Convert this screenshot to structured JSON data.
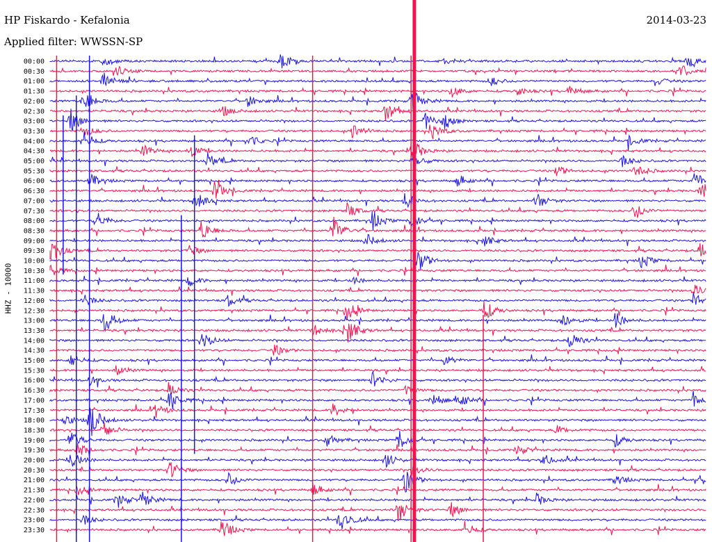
{
  "header": {
    "station": "HP Fiskardo - Kefalonia",
    "filter": "Applied filter: WWSSN-SP",
    "date": "2014-03-23",
    "channel": "HHZ - 10000"
  },
  "colors": {
    "odd_trace": "#1a12e6",
    "even_trace": "#f0134e",
    "background": "#ffffff"
  },
  "chart_data": {
    "type": "line",
    "subtype": "helicorder",
    "title": "",
    "xlabel": "",
    "ylabel": "HHZ - 10000",
    "grid": false,
    "legend": "none",
    "row_labels": [
      "00:00",
      "00:30",
      "01:00",
      "01:30",
      "02:00",
      "02:30",
      "03:00",
      "03:30",
      "04:00",
      "04:30",
      "05:00",
      "05:30",
      "06:00",
      "06:30",
      "07:00",
      "07:30",
      "08:00",
      "08:30",
      "09:00",
      "09:30",
      "10:00",
      "10:30",
      "11:00",
      "11:30",
      "12:00",
      "12:30",
      "13:00",
      "13:30",
      "14:00",
      "14:30",
      "15:00",
      "15:30",
      "16:00",
      "16:30",
      "17:00",
      "17:30",
      "18:00",
      "18:30",
      "19:00",
      "19:30",
      "20:00",
      "20:30",
      "21:00",
      "21:30",
      "22:00",
      "22:30",
      "23:00",
      "23:30"
    ],
    "row_minutes": 30,
    "events": [
      {
        "row": 0,
        "t": 0.35,
        "a": 14
      },
      {
        "row": 0,
        "t": 0.08,
        "a": 8
      },
      {
        "row": 0,
        "t": 0.6,
        "a": 6
      },
      {
        "row": 0,
        "t": 0.97,
        "a": 10
      },
      {
        "row": 1,
        "t": 0.1,
        "a": 8
      },
      {
        "row": 1,
        "t": 0.96,
        "a": 12
      },
      {
        "row": 2,
        "t": 0.08,
        "a": 14
      },
      {
        "row": 2,
        "t": 0.67,
        "a": 8
      },
      {
        "row": 2,
        "t": 0.92,
        "a": 8
      },
      {
        "row": 3,
        "t": 0.61,
        "a": 10
      },
      {
        "row": 3,
        "t": 0.71,
        "a": 8
      },
      {
        "row": 3,
        "t": 0.79,
        "a": 10
      },
      {
        "row": 4,
        "t": 0.05,
        "a": 20
      },
      {
        "row": 4,
        "t": 0.3,
        "a": 10
      },
      {
        "row": 4,
        "t": 0.55,
        "a": 20
      },
      {
        "row": 5,
        "t": 0.51,
        "a": 18
      },
      {
        "row": 5,
        "t": 0.26,
        "a": 10
      },
      {
        "row": 6,
        "t": 0.03,
        "a": 20
      },
      {
        "row": 6,
        "t": 0.57,
        "a": 14
      },
      {
        "row": 6,
        "t": 0.6,
        "a": 12
      },
      {
        "row": 7,
        "t": 0.05,
        "a": 10
      },
      {
        "row": 7,
        "t": 0.46,
        "a": 14
      },
      {
        "row": 7,
        "t": 0.58,
        "a": 14
      },
      {
        "row": 8,
        "t": 0.05,
        "a": 16
      },
      {
        "row": 8,
        "t": 0.3,
        "a": 12
      },
      {
        "row": 8,
        "t": 0.88,
        "a": 10
      },
      {
        "row": 9,
        "t": 0.55,
        "a": 20
      },
      {
        "row": 9,
        "t": 0.21,
        "a": 14
      },
      {
        "row": 9,
        "t": 0.14,
        "a": 10
      },
      {
        "row": 10,
        "t": 0.55,
        "a": 16
      },
      {
        "row": 10,
        "t": 0.24,
        "a": 12
      },
      {
        "row": 10,
        "t": 0.87,
        "a": 10
      },
      {
        "row": 11,
        "t": 0.89,
        "a": 14
      },
      {
        "row": 11,
        "t": 0.77,
        "a": 10
      },
      {
        "row": 12,
        "t": 0.06,
        "a": 12
      },
      {
        "row": 12,
        "t": 0.98,
        "a": 12
      },
      {
        "row": 12,
        "t": 0.62,
        "a": 10
      },
      {
        "row": 13,
        "t": 0.25,
        "a": 18
      },
      {
        "row": 13,
        "t": 0.99,
        "a": 18
      },
      {
        "row": 14,
        "t": 0.22,
        "a": 16
      },
      {
        "row": 14,
        "t": 0.54,
        "a": 12
      },
      {
        "row": 14,
        "t": 0.74,
        "a": 14
      },
      {
        "row": 15,
        "t": 0.45,
        "a": 14
      },
      {
        "row": 15,
        "t": 0.89,
        "a": 14
      },
      {
        "row": 16,
        "t": 0.07,
        "a": 14
      },
      {
        "row": 16,
        "t": 0.49,
        "a": 16
      },
      {
        "row": 16,
        "t": 0.55,
        "a": 12
      },
      {
        "row": 17,
        "t": 0.23,
        "a": 16
      },
      {
        "row": 17,
        "t": 0.43,
        "a": 24
      },
      {
        "row": 18,
        "t": 0.48,
        "a": 12
      },
      {
        "row": 18,
        "t": 0.66,
        "a": 10
      },
      {
        "row": 19,
        "t": 0.0,
        "a": 20
      },
      {
        "row": 19,
        "t": 0.21,
        "a": 10
      },
      {
        "row": 19,
        "t": 0.99,
        "a": 14
      },
      {
        "row": 20,
        "t": 0.56,
        "a": 20
      },
      {
        "row": 20,
        "t": 0.9,
        "a": 12
      },
      {
        "row": 21,
        "t": 0.0,
        "a": 10
      },
      {
        "row": 22,
        "t": 0.21,
        "a": 10
      },
      {
        "row": 22,
        "t": 0.46,
        "a": 6
      },
      {
        "row": 23,
        "t": 0.98,
        "a": 10
      },
      {
        "row": 24,
        "t": 0.05,
        "a": 10
      },
      {
        "row": 24,
        "t": 0.27,
        "a": 10
      },
      {
        "row": 24,
        "t": 0.98,
        "a": 14
      },
      {
        "row": 25,
        "t": 0.45,
        "a": 16
      },
      {
        "row": 25,
        "t": 0.66,
        "a": 18
      },
      {
        "row": 26,
        "t": 0.08,
        "a": 22
      },
      {
        "row": 26,
        "t": 0.78,
        "a": 12
      },
      {
        "row": 26,
        "t": 0.86,
        "a": 14
      },
      {
        "row": 27,
        "t": 0.45,
        "a": 26
      },
      {
        "row": 27,
        "t": 0.4,
        "a": 10
      },
      {
        "row": 28,
        "t": 0.23,
        "a": 16
      },
      {
        "row": 28,
        "t": 0.79,
        "a": 16
      },
      {
        "row": 29,
        "t": 0.34,
        "a": 10
      },
      {
        "row": 30,
        "t": 0.03,
        "a": 12
      },
      {
        "row": 30,
        "t": 0.6,
        "a": 8
      },
      {
        "row": 31,
        "t": 0.1,
        "a": 8
      },
      {
        "row": 32,
        "t": 0.49,
        "a": 14
      },
      {
        "row": 32,
        "t": 0.06,
        "a": 8
      },
      {
        "row": 33,
        "t": 0.18,
        "a": 12
      },
      {
        "row": 33,
        "t": 0.54,
        "a": 8
      },
      {
        "row": 34,
        "t": 0.18,
        "a": 18
      },
      {
        "row": 34,
        "t": 0.58,
        "a": 14
      },
      {
        "row": 34,
        "t": 0.62,
        "a": 14
      },
      {
        "row": 34,
        "t": 0.98,
        "a": 12
      },
      {
        "row": 35,
        "t": 0.16,
        "a": 10
      },
      {
        "row": 35,
        "t": 0.43,
        "a": 12
      },
      {
        "row": 36,
        "t": 0.06,
        "a": 30
      },
      {
        "row": 36,
        "t": 0.02,
        "a": 10
      },
      {
        "row": 37,
        "t": 0.08,
        "a": 14
      },
      {
        "row": 37,
        "t": 0.77,
        "a": 8
      },
      {
        "row": 38,
        "t": 0.03,
        "a": 18
      },
      {
        "row": 38,
        "t": 0.42,
        "a": 12
      },
      {
        "row": 38,
        "t": 0.53,
        "a": 16
      },
      {
        "row": 38,
        "t": 0.86,
        "a": 10
      },
      {
        "row": 39,
        "t": 0.04,
        "a": 12
      },
      {
        "row": 39,
        "t": 0.71,
        "a": 8
      },
      {
        "row": 40,
        "t": 0.03,
        "a": 16
      },
      {
        "row": 40,
        "t": 0.51,
        "a": 12
      },
      {
        "row": 40,
        "t": 0.75,
        "a": 10
      },
      {
        "row": 41,
        "t": 0.18,
        "a": 16
      },
      {
        "row": 41,
        "t": 0.55,
        "a": 10
      },
      {
        "row": 42,
        "t": 0.27,
        "a": 12
      },
      {
        "row": 42,
        "t": 0.54,
        "a": 20
      },
      {
        "row": 42,
        "t": 0.99,
        "a": 8
      },
      {
        "row": 42,
        "t": 0.86,
        "a": 10
      },
      {
        "row": 43,
        "t": 0.04,
        "a": 8
      },
      {
        "row": 43,
        "t": 0.4,
        "a": 10
      },
      {
        "row": 44,
        "t": 0.1,
        "a": 14
      },
      {
        "row": 44,
        "t": 0.14,
        "a": 14
      },
      {
        "row": 44,
        "t": 0.74,
        "a": 10
      },
      {
        "row": 45,
        "t": 0.53,
        "a": 20
      },
      {
        "row": 45,
        "t": 0.61,
        "a": 12
      },
      {
        "row": 46,
        "t": 0.44,
        "a": 24
      },
      {
        "row": 46,
        "t": 0.05,
        "a": 8
      },
      {
        "row": 47,
        "t": 0.26,
        "a": 20
      },
      {
        "row": 47,
        "t": 0.63,
        "a": 14
      }
    ],
    "long_spikes": [
      {
        "t": 0.02,
        "from_row": 6,
        "to_row": 20,
        "color": "blue"
      },
      {
        "t": 0.04,
        "from_row": 4,
        "to_row": 47,
        "color": "blue"
      },
      {
        "t": 0.06,
        "from_row": 0,
        "to_row": 47,
        "color": "blue"
      },
      {
        "t": 0.2,
        "from_row": 16,
        "to_row": 47,
        "color": "blue"
      },
      {
        "t": 0.22,
        "from_row": 8,
        "to_row": 38,
        "color": "blue"
      },
      {
        "t": 0.4,
        "from_row": 0,
        "to_row": 47,
        "color": "red"
      },
      {
        "t": 0.55,
        "from_row": 0,
        "to_row": 47,
        "color": "red"
      },
      {
        "t": 0.01,
        "from_row": 0,
        "to_row": 47,
        "color": "red"
      },
      {
        "t": 0.66,
        "from_row": 26,
        "to_row": 47,
        "color": "red"
      }
    ],
    "heavy_bands": [
      {
        "t": 0.555,
        "from_row": 0,
        "to_row": 47,
        "color": "red"
      }
    ]
  }
}
